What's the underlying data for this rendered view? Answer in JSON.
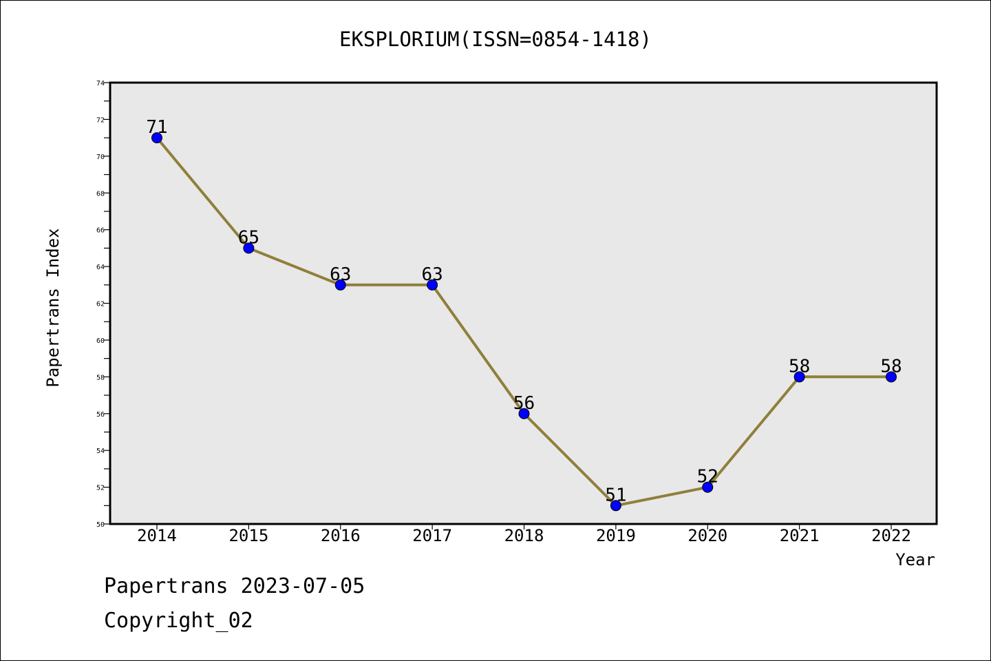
{
  "chart_data": {
    "type": "line",
    "title": "EKSPLORIUM(ISSN=0854-1418)",
    "xlabel": "Year",
    "ylabel": "Papertrans Index",
    "x": [
      "2014",
      "2015",
      "2016",
      "2017",
      "2018",
      "2019",
      "2020",
      "2021",
      "2022"
    ],
    "series": [
      {
        "values": [
          71,
          65,
          63,
          63,
          56,
          51,
          52,
          58,
          58
        ]
      }
    ],
    "ylim": [
      50,
      74
    ],
    "yticks": [
      50,
      52,
      54,
      56,
      58,
      60,
      62,
      64,
      66,
      68,
      70,
      72,
      74
    ],
    "grid": false,
    "data_labels": true,
    "colors": {
      "line": "#8f7f3a",
      "marker": "#0000ff",
      "plot_background": "#e8e8e8"
    }
  },
  "footer": {
    "line1": "Papertrans 2023-07-05",
    "line2": "Copyright_02"
  }
}
